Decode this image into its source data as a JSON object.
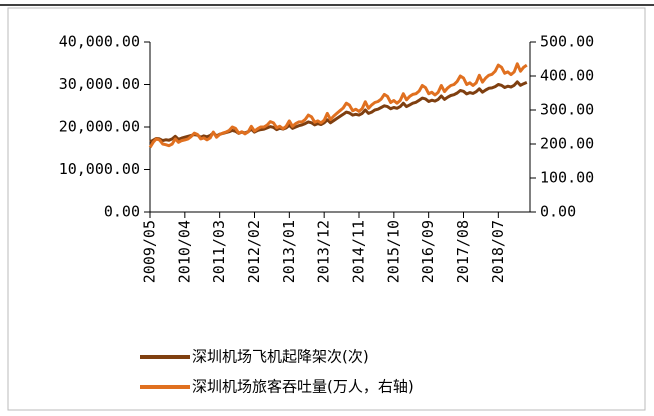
{
  "chart_data": {
    "type": "line",
    "categories": [
      "2009/05",
      null,
      null,
      null,
      null,
      null,
      null,
      null,
      null,
      null,
      null,
      "2010/04",
      null,
      null,
      null,
      null,
      null,
      null,
      null,
      null,
      null,
      null,
      "2011/03",
      null,
      null,
      null,
      null,
      null,
      null,
      null,
      null,
      null,
      null,
      "2012/02",
      null,
      null,
      null,
      null,
      null,
      null,
      null,
      null,
      null,
      null,
      "2013/01",
      null,
      null,
      null,
      null,
      null,
      null,
      null,
      null,
      null,
      null,
      "2013/12",
      null,
      null,
      null,
      null,
      null,
      null,
      null,
      null,
      null,
      null,
      "2014/11",
      null,
      null,
      null,
      null,
      null,
      null,
      null,
      null,
      null,
      null,
      "2015/10",
      null,
      null,
      null,
      null,
      null,
      null,
      null,
      null,
      null,
      null,
      "2016/09",
      null,
      null,
      null,
      null,
      null,
      null,
      null,
      null,
      null,
      null,
      "2017/08",
      null,
      null,
      null,
      null,
      null,
      null,
      null,
      null,
      null,
      null,
      "2018/07",
      null,
      null,
      null,
      null,
      null,
      null,
      null,
      null,
      null
    ],
    "series": [
      {
        "name": "深圳机场飞机起降架次(次)",
        "color": "#7f3f10",
        "values": [
          16500,
          16900,
          17300,
          17200,
          16800,
          17000,
          16900,
          17200,
          17800,
          17100,
          17400,
          17600,
          17800,
          18000,
          18200,
          18100,
          17600,
          17900,
          17700,
          18000,
          18600,
          17900,
          18300,
          18500,
          18700,
          18900,
          19200,
          19000,
          18500,
          18800,
          18600,
          18900,
          19500,
          18800,
          19200,
          19400,
          19500,
          19800,
          20100,
          19900,
          19400,
          19700,
          19500,
          19800,
          20400,
          19700,
          20000,
          20300,
          20500,
          20800,
          21200,
          21000,
          20500,
          20800,
          20600,
          21000,
          21700,
          21000,
          21500,
          22000,
          22500,
          23000,
          23500,
          23300,
          22800,
          23000,
          22800,
          23200,
          24000,
          23200,
          23500,
          24000,
          24200,
          24600,
          25000,
          24800,
          24300,
          24600,
          24400,
          24800,
          25600,
          24800,
          25200,
          25600,
          25800,
          26300,
          26800,
          26600,
          26000,
          26300,
          26100,
          26500,
          27300,
          26500,
          27000,
          27400,
          27600,
          28000,
          28600,
          28400,
          27800,
          28100,
          27900,
          28300,
          29000,
          28200,
          28700,
          29100,
          29200,
          29500,
          30000,
          29800,
          29300,
          29600,
          29400,
          29800,
          30600,
          29800,
          30200,
          30500
        ]
      },
      {
        "name": "深圳机场旅客吞吐量(万人，右轴)",
        "color": "#e07020",
        "axis": "y2",
        "values": [
          190,
          205,
          215,
          212,
          200,
          198,
          195,
          200,
          215,
          205,
          210,
          212,
          215,
          222,
          232,
          228,
          215,
          218,
          212,
          218,
          235,
          220,
          228,
          232,
          235,
          240,
          250,
          246,
          232,
          236,
          230,
          236,
          252,
          238,
          245,
          250,
          250,
          256,
          266,
          262,
          248,
          252,
          245,
          252,
          268,
          252,
          260,
          265,
          265,
          272,
          285,
          280,
          264,
          268,
          262,
          270,
          290,
          272,
          282,
          290,
          298,
          306,
          320,
          314,
          298,
          302,
          296,
          304,
          324,
          305,
          315,
          322,
          325,
          332,
          346,
          340,
          322,
          328,
          320,
          328,
          348,
          330,
          340,
          346,
          348,
          356,
          372,
          366,
          348,
          352,
          344,
          352,
          372,
          354,
          365,
          372,
          375,
          384,
          400,
          394,
          375,
          380,
          372,
          380,
          402,
          382,
          394,
          402,
          405,
          414,
          432,
          426,
          408,
          412,
          404,
          412,
          436,
          414,
          426,
          432
        ]
      }
    ],
    "ylim": [
      0,
      40000
    ],
    "yticks": [
      {
        "value": 0,
        "label": "0.00"
      },
      {
        "value": 10000,
        "label": "10,000.00"
      },
      {
        "value": 20000,
        "label": "20,000.00"
      },
      {
        "value": 30000,
        "label": "30,000.00"
      },
      {
        "value": 40000,
        "label": "40,000.00"
      }
    ],
    "y2lim": [
      0,
      500
    ],
    "y2ticks": [
      {
        "value": 0,
        "label": "0.00"
      },
      {
        "value": 100,
        "label": "100.00"
      },
      {
        "value": 200,
        "label": "200.00"
      },
      {
        "value": 300,
        "label": "300.00"
      },
      {
        "value": 400,
        "label": "400.00"
      },
      {
        "value": 500,
        "label": "500.00"
      }
    ]
  }
}
